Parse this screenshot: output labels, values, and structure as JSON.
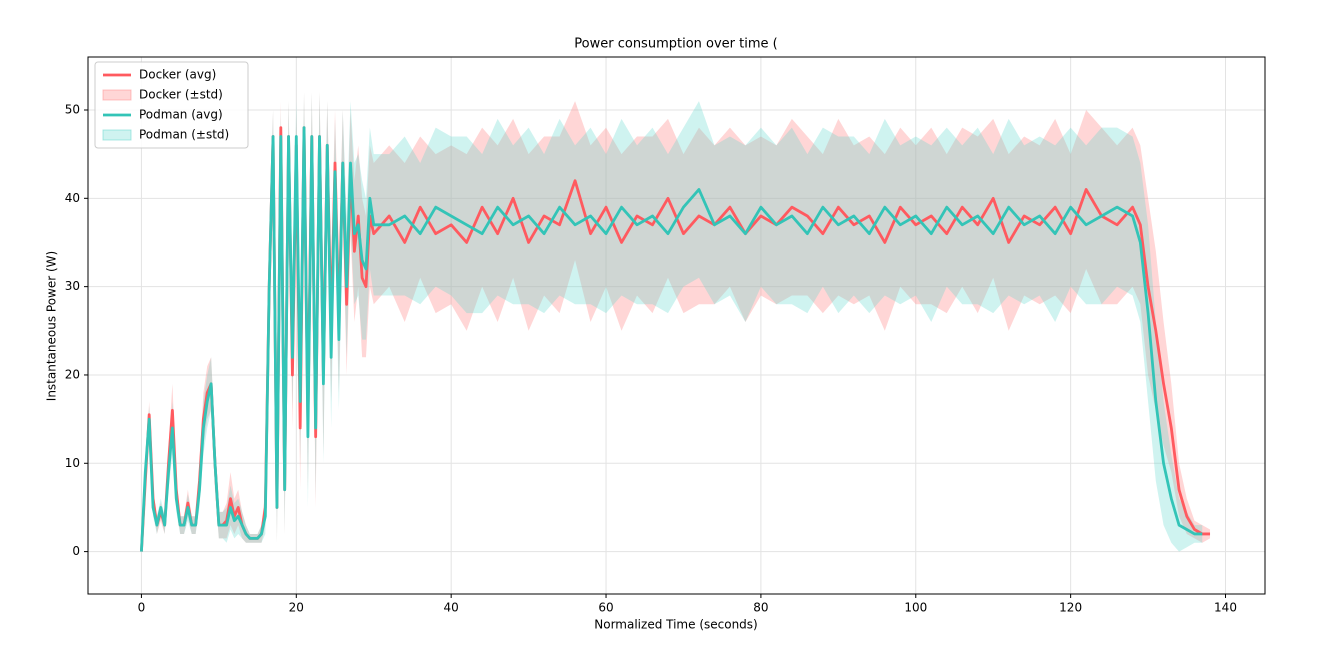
{
  "chart_data": {
    "type": "line",
    "title": "Power consumption over time (",
    "xlabel": "Normalized Time (seconds)",
    "ylabel": "Instantaneous Power (W)",
    "xlim": [
      -6.9,
      145.1
    ],
    "ylim": [
      -4.8,
      56.0
    ],
    "xticks": [
      0,
      20,
      40,
      60,
      80,
      100,
      120,
      140
    ],
    "yticks": [
      0,
      10,
      20,
      30,
      40,
      50
    ],
    "grid": true,
    "legend": "upper left",
    "x": [
      0,
      0.5,
      1,
      1.5,
      2,
      2.5,
      3,
      3.5,
      4,
      4.5,
      5,
      5.5,
      6,
      6.5,
      7,
      7.5,
      8,
      8.5,
      9,
      9.5,
      10,
      10.5,
      11,
      11.5,
      12,
      12.5,
      13,
      13.5,
      14,
      14.5,
      15,
      15.5,
      16,
      16.5,
      17,
      17.5,
      18,
      18.5,
      19,
      19.5,
      20,
      20.5,
      21,
      21.5,
      22,
      22.5,
      23,
      23.5,
      24,
      24.5,
      25,
      25.5,
      26,
      26.5,
      27,
      27.5,
      28,
      28.5,
      29,
      29.5,
      30,
      32,
      34,
      36,
      38,
      40,
      42,
      44,
      46,
      48,
      50,
      52,
      54,
      56,
      58,
      60,
      62,
      64,
      66,
      68,
      70,
      72,
      74,
      76,
      78,
      80,
      82,
      84,
      86,
      88,
      90,
      92,
      94,
      96,
      98,
      100,
      102,
      104,
      106,
      108,
      110,
      112,
      114,
      116,
      118,
      120,
      122,
      124,
      126,
      128,
      129,
      130,
      131,
      132,
      133,
      134,
      135,
      136,
      137,
      138
    ],
    "series": [
      {
        "name": "Docker (avg)",
        "color": "#ff5a5f",
        "values": [
          0,
          8,
          15.5,
          6,
          3,
          4.5,
          3,
          10,
          16,
          7,
          3,
          3,
          5.5,
          3,
          3,
          8,
          15,
          18,
          19,
          10,
          3,
          3,
          3.5,
          6,
          4,
          5,
          3,
          2,
          1.5,
          1.5,
          1.5,
          2,
          5,
          30,
          47,
          5,
          48,
          7,
          47,
          20,
          46,
          14,
          48,
          15,
          47,
          13,
          47,
          20,
          46,
          25,
          44,
          26,
          44,
          28,
          43,
          34,
          38,
          31,
          30,
          38,
          36,
          38,
          35,
          39,
          36,
          37,
          35,
          39,
          36,
          40,
          35,
          38,
          37,
          42,
          36,
          39,
          35,
          38,
          37,
          40,
          36,
          38,
          37,
          39,
          36,
          38,
          37,
          39,
          38,
          36,
          39,
          37,
          38,
          35,
          39,
          37,
          38,
          36,
          39,
          37,
          40,
          35,
          38,
          37,
          39,
          36,
          41,
          38,
          37,
          39,
          37,
          30,
          25,
          19,
          14,
          7,
          4,
          2.5,
          2,
          2
        ],
        "band": {
          "name": "Docker (±std)",
          "color": "#ff8a8a",
          "alpha": 0.35,
          "std": [
            0,
            1,
            1.5,
            1,
            1,
            1,
            1,
            2,
            3,
            1.5,
            1,
            1,
            1.5,
            1,
            1,
            2,
            3,
            3,
            3,
            3,
            1.5,
            1.5,
            2,
            3,
            2,
            2,
            1.5,
            1,
            0.5,
            0.5,
            0.5,
            1,
            2,
            5,
            3,
            4,
            3,
            5,
            4,
            6,
            4,
            7,
            4,
            8,
            5,
            8,
            5,
            9,
            5,
            8,
            6,
            8,
            6,
            8,
            7,
            8,
            8,
            9,
            8,
            8,
            8,
            8,
            9,
            8,
            9,
            9,
            10,
            9,
            10,
            9,
            10,
            9,
            10,
            9,
            10,
            9,
            10,
            9,
            10,
            9,
            9,
            10,
            9,
            9,
            10,
            9,
            9,
            10,
            9,
            9,
            10,
            9,
            9,
            10,
            9,
            9,
            10,
            9,
            9,
            10,
            9,
            10,
            9,
            9,
            10,
            9,
            9,
            10,
            9,
            9,
            9,
            10,
            9,
            7,
            5,
            3,
            2,
            1,
            1,
            0.5
          ]
        }
      },
      {
        "name": "Podman (avg)",
        "color": "#33c4b7",
        "values": [
          0,
          9,
          15,
          5,
          3,
          5,
          3,
          9,
          14,
          6,
          3,
          3,
          5,
          3,
          3,
          7,
          14,
          17,
          19,
          10,
          3,
          3,
          3,
          5,
          3.5,
          4,
          3,
          2,
          1.5,
          1.5,
          1.5,
          2,
          4,
          30,
          47,
          5,
          47,
          7,
          47,
          22,
          47,
          17,
          48,
          13,
          47,
          14,
          47,
          19,
          46,
          22,
          43,
          24,
          44,
          30,
          44,
          36,
          37,
          33,
          32,
          40,
          37,
          37,
          38,
          36,
          39,
          38,
          37,
          36,
          39,
          37,
          38,
          36,
          39,
          37,
          38,
          36,
          39,
          37,
          38,
          36,
          39,
          41,
          37,
          38,
          36,
          39,
          37,
          38,
          36,
          39,
          37,
          38,
          36,
          39,
          37,
          38,
          36,
          39,
          37,
          38,
          36,
          39,
          37,
          38,
          36,
          39,
          37,
          38,
          39,
          38,
          35,
          27,
          17,
          10,
          6,
          3,
          2.5,
          2,
          2,
          null
        ],
        "band": {
          "name": "Podman (±std)",
          "color": "#5fd6cc",
          "alpha": 0.3,
          "std": [
            0,
            1,
            1.5,
            1,
            1,
            1,
            1,
            2,
            3,
            1.5,
            1,
            1,
            1.5,
            1,
            1,
            2,
            3,
            3,
            3,
            3,
            1.5,
            1.5,
            2,
            2.5,
            2,
            2,
            1.5,
            1,
            0.5,
            0.5,
            0.5,
            1,
            2,
            5,
            3,
            4,
            3,
            5,
            4,
            6,
            4,
            7,
            4,
            8,
            5,
            8,
            5,
            9,
            5,
            8,
            6,
            8,
            6,
            8,
            7,
            8,
            8,
            9,
            8,
            8,
            8,
            8,
            9,
            8,
            9,
            9,
            10,
            9,
            10,
            9,
            10,
            9,
            10,
            9,
            10,
            9,
            10,
            9,
            10,
            9,
            9,
            10,
            9,
            9,
            10,
            9,
            9,
            10,
            9,
            9,
            10,
            9,
            9,
            10,
            9,
            9,
            10,
            9,
            9,
            10,
            9,
            10,
            9,
            9,
            10,
            9,
            9,
            10,
            9,
            9,
            9,
            10,
            9,
            7,
            5,
            3,
            2,
            1,
            1,
            null
          ]
        }
      }
    ]
  }
}
